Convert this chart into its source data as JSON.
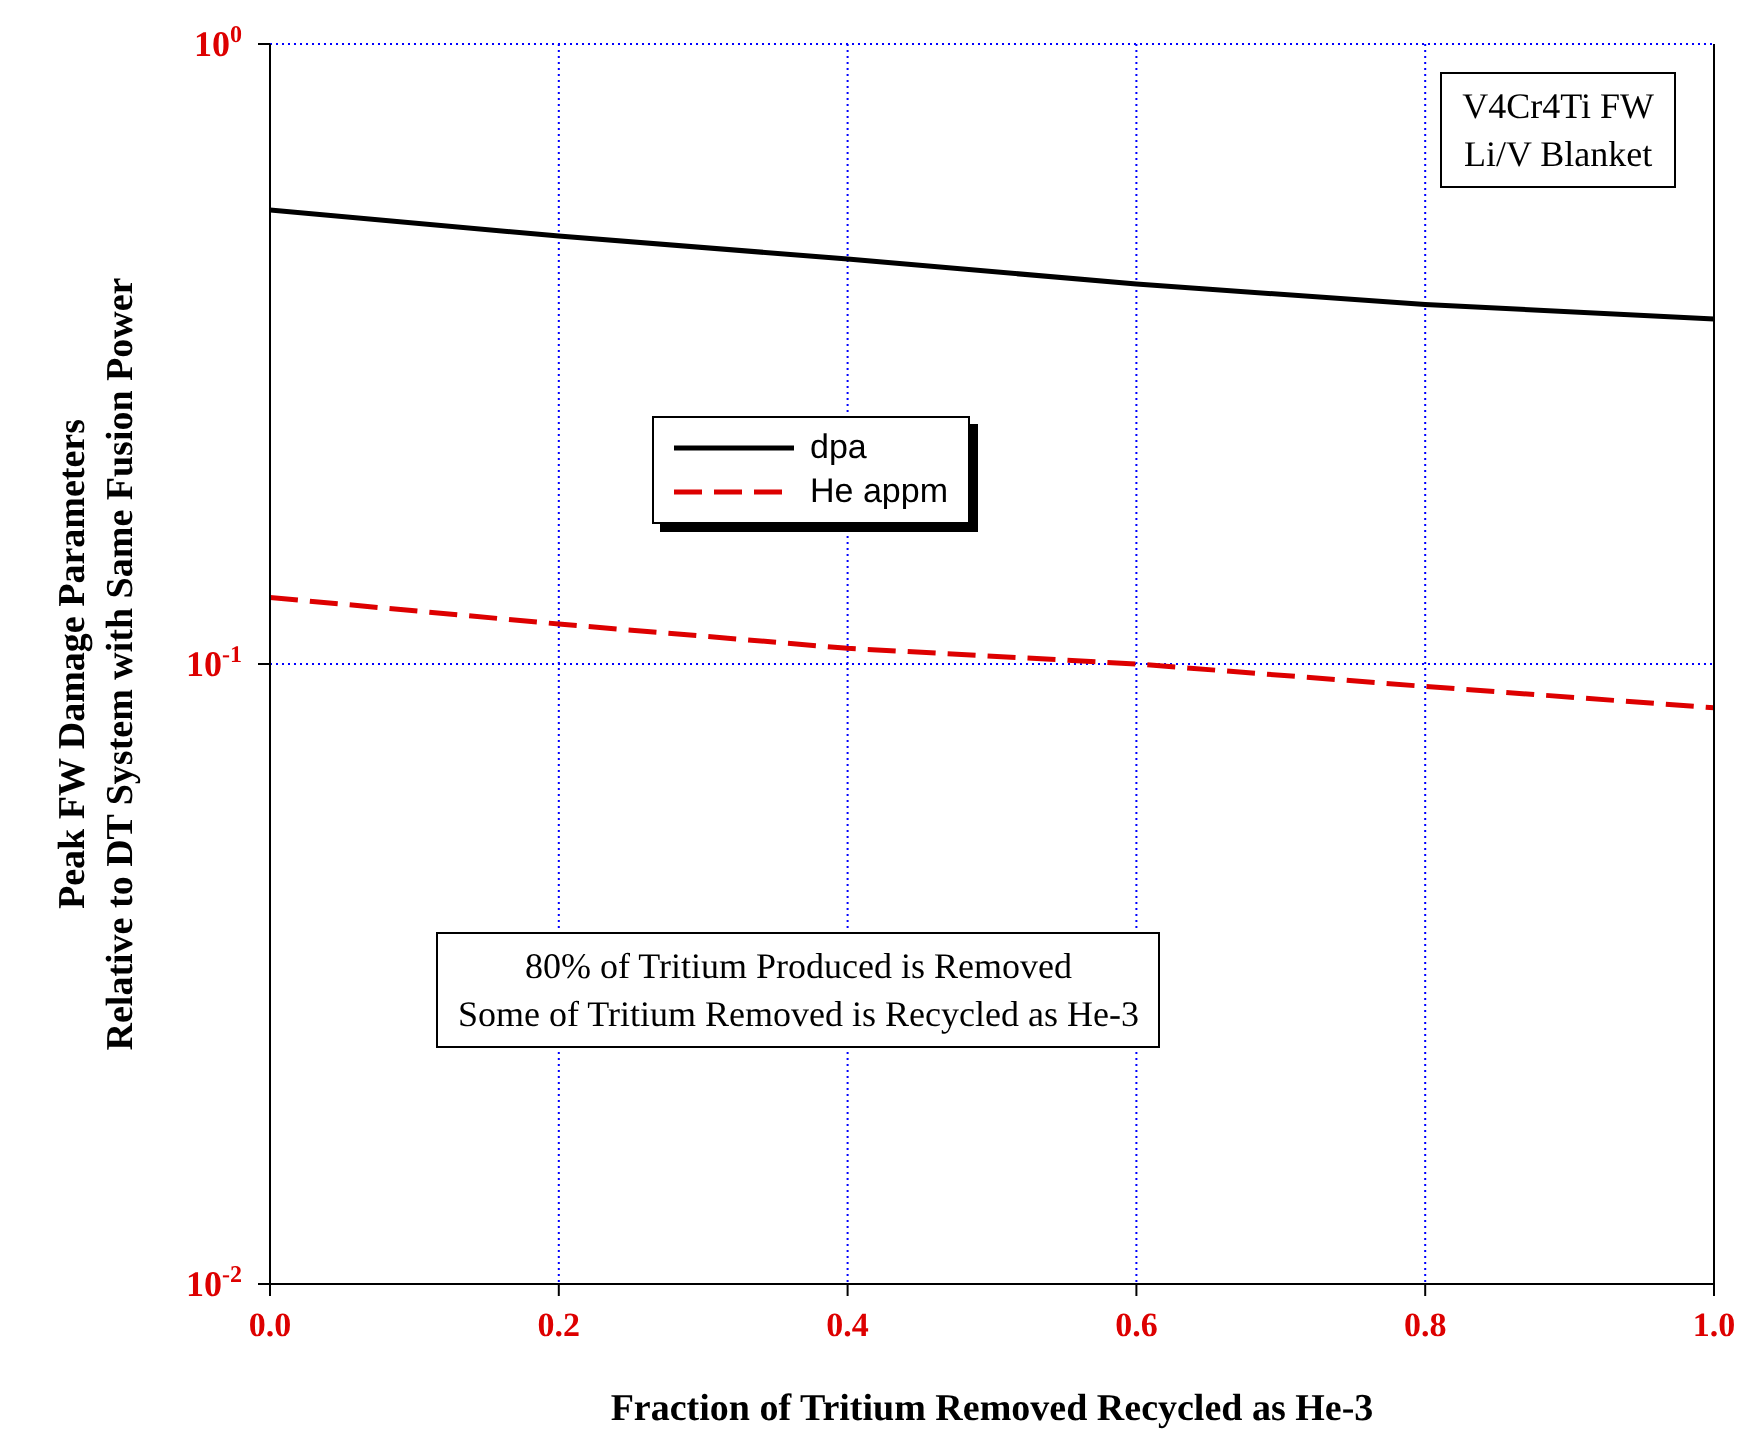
{
  "chart_data": {
    "type": "line",
    "xlabel": "Fraction of Tritium Removed Recycled as He-3",
    "ylabel": "Peak FW Damage Parameters\nRelative to DT System with Same Fusion Power",
    "x": [
      0,
      0.2,
      0.4,
      0.6,
      0.8,
      1.0
    ],
    "series": [
      {
        "name": "dpa",
        "color": "#000000",
        "line_style": "solid",
        "values": [
          0.54,
          0.49,
          0.45,
          0.41,
          0.38,
          0.36
        ]
      },
      {
        "name": "He appm",
        "color": "#dd0000",
        "line_style": "dashed",
        "values": [
          0.128,
          0.116,
          0.106,
          0.1,
          0.092,
          0.085
        ]
      }
    ],
    "log": "y",
    "xlim": [
      0,
      1
    ],
    "ylim": [
      0.01,
      1
    ],
    "xticks": [
      {
        "value": 0,
        "label": "0.0"
      },
      {
        "value": 0.2,
        "label": "0.2"
      },
      {
        "value": 0.4,
        "label": "0.4"
      },
      {
        "value": 0.6,
        "label": "0.6"
      },
      {
        "value": 0.8,
        "label": "0.8"
      },
      {
        "value": 1,
        "label": "1.0"
      }
    ],
    "yticks": [
      {
        "value": 0.01,
        "label": "10$^{-2}$"
      },
      {
        "value": 0.1,
        "label": "10$^{-1}$"
      },
      {
        "value": 1,
        "label": "10$^{0}$"
      }
    ],
    "grid": true,
    "legend": "top",
    "marker": "none",
    "annotations": [
      "V4Cr4Ti FW\nLi/V Blanket",
      "80% of Tritium Produced is Removed\nSome of Tritium Removed is Recycled as He-3"
    ]
  }
}
